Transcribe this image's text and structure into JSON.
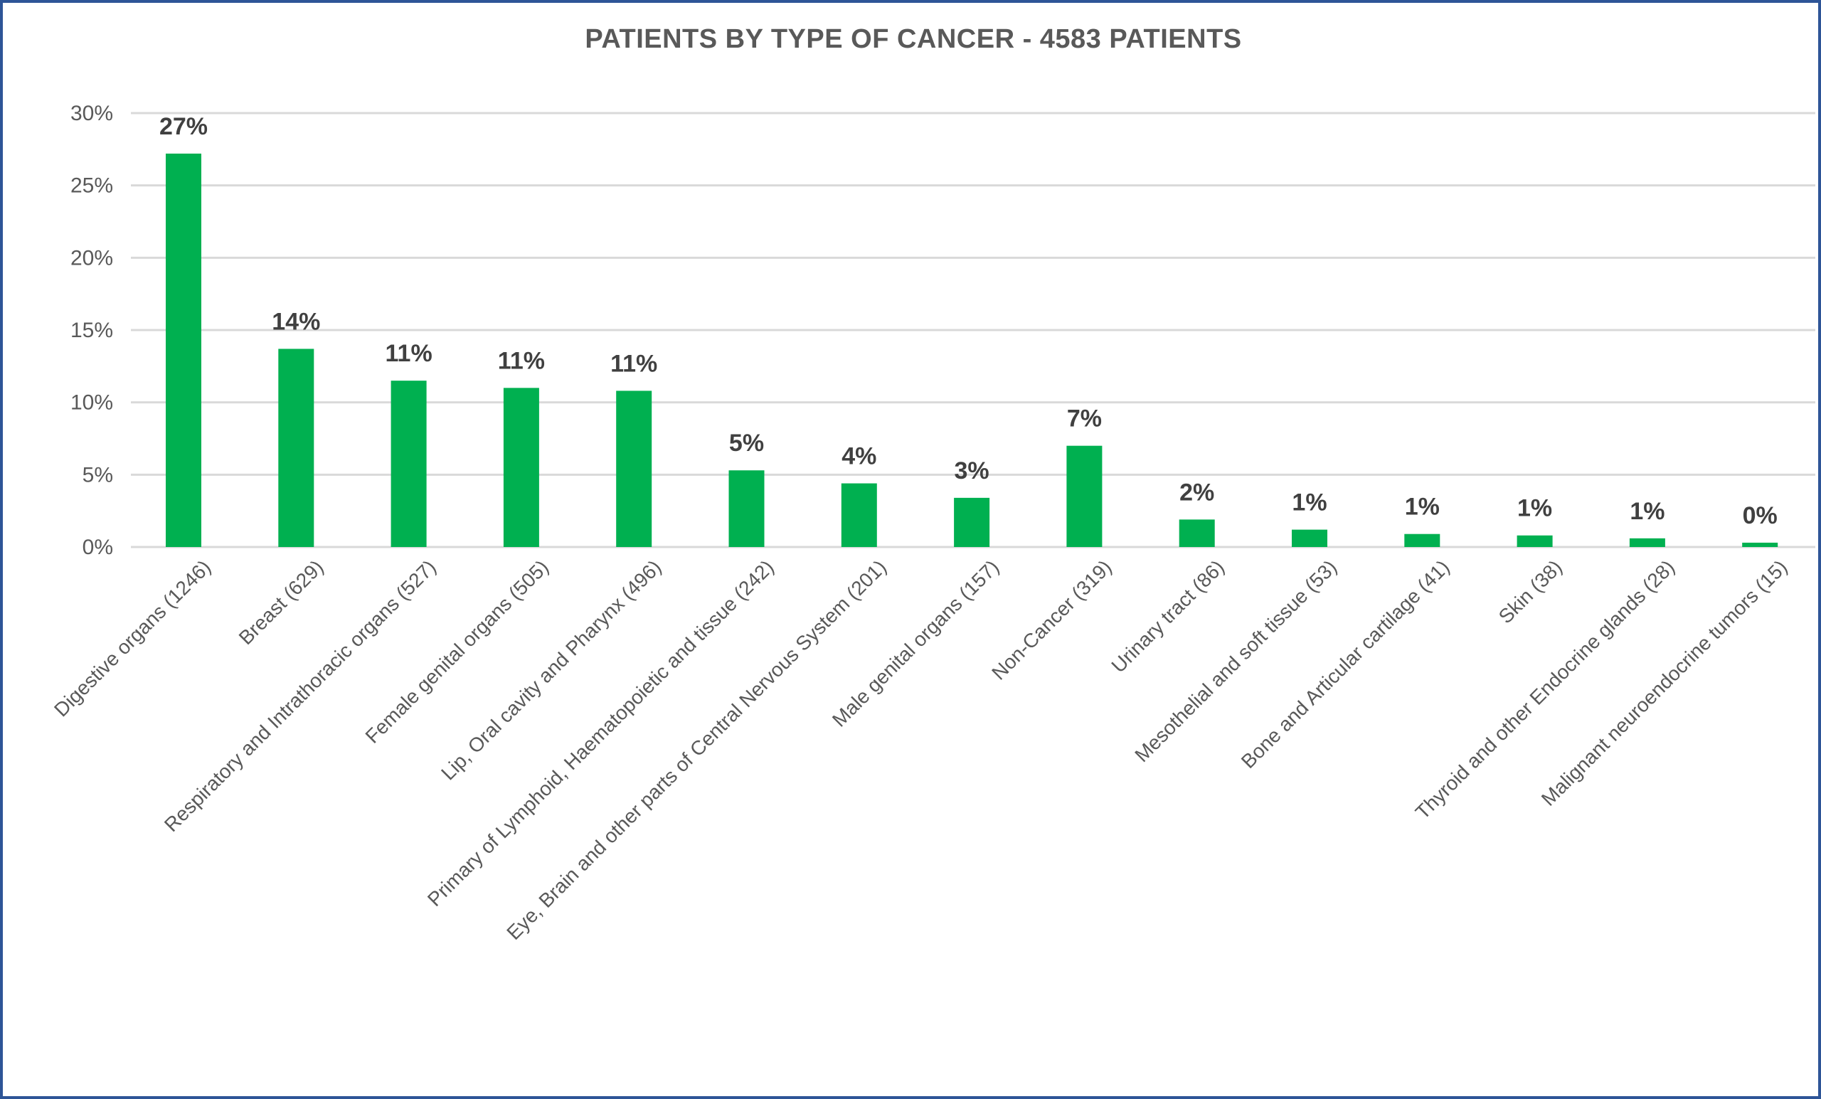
{
  "chart_data": {
    "type": "bar",
    "title": "PATIENTS BY TYPE OF CANCER - 4583 PATIENTS",
    "categories": [
      "Digestive organs (1246)",
      "Breast (629)",
      "Respiratory and Intrathoracic organs (527)",
      "Female genital organs (505)",
      "Lip, Oral cavity and Pharynx (496)",
      "Primary of Lymphoid, Haematopoietic and  tissue (242)",
      "Eye, Brain and other parts of Central Nervous System (201)",
      "Male genital organs (157)",
      "Non-Cancer (319)",
      "Urinary tract (86)",
      "Mesothelial and soft tissue (53)",
      "Bone and Articular cartilage (41)",
      "Skin (38)",
      "Thyroid and other Endocrine glands (28)",
      "Malignant neuroendocrine tumors (15)"
    ],
    "values": [
      27.2,
      13.7,
      11.5,
      11.0,
      10.8,
      5.3,
      4.4,
      3.4,
      7.0,
      1.9,
      1.2,
      0.9,
      0.8,
      0.6,
      0.3
    ],
    "data_labels": [
      "27%",
      "14%",
      "11%",
      "11%",
      "11%",
      "5%",
      "4%",
      "3%",
      "7%",
      "2%",
      "1%",
      "1%",
      "1%",
      "1%",
      "0%"
    ],
    "ylim": [
      0,
      30
    ],
    "yticks": [
      0,
      5,
      10,
      15,
      20,
      25,
      30
    ],
    "ytick_labels": [
      "0%",
      "5%",
      "10%",
      "15%",
      "20%",
      "25%",
      "30%"
    ],
    "xlabel": "",
    "ylabel": "",
    "grid": "horizontal",
    "legend": "none",
    "colors": {
      "bar": "#00b050",
      "grid": "#d9d9d9",
      "border": "#2e5597",
      "text": "#595959",
      "data_label": "#404040"
    }
  }
}
